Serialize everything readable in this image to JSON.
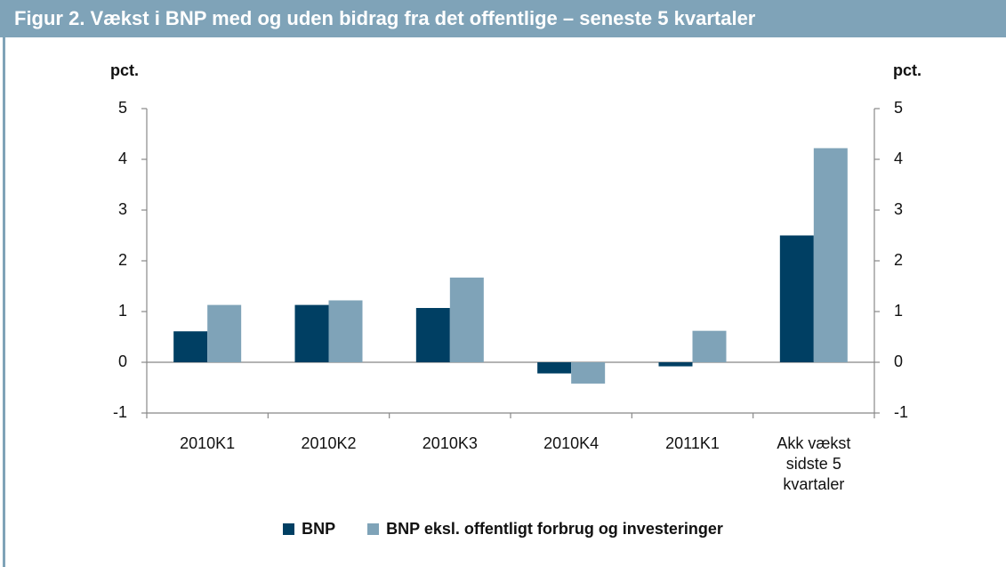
{
  "chart_data": {
    "type": "bar",
    "title": "Figur 2. Vækst i BNP med og uden bidrag fra det offentlige – seneste 5 kvartaler",
    "y_label": "pct.",
    "y2_label": "pct.",
    "categories": [
      "2010K1",
      "2010K2",
      "2010K3",
      "2010K4",
      "2011K1",
      "Akk vækst sidste 5 kvartaler"
    ],
    "series": [
      {
        "name": "BNP",
        "color": "#003f63",
        "values": [
          0.61,
          1.13,
          1.07,
          -0.22,
          -0.08,
          2.5
        ]
      },
      {
        "name": "BNP eksl. offentligt forbrug og investeringer",
        "color": "#7fa3b8",
        "values": [
          1.13,
          1.22,
          1.67,
          -0.42,
          0.62,
          4.22
        ]
      }
    ],
    "ylim": [
      -1,
      5
    ],
    "yticks": [
      -1,
      0,
      1,
      2,
      3,
      4,
      5
    ],
    "y2lim": [
      -1,
      5
    ],
    "y2ticks": [
      -1,
      0,
      1,
      2,
      3,
      4,
      5
    ],
    "legend": "bottom"
  }
}
